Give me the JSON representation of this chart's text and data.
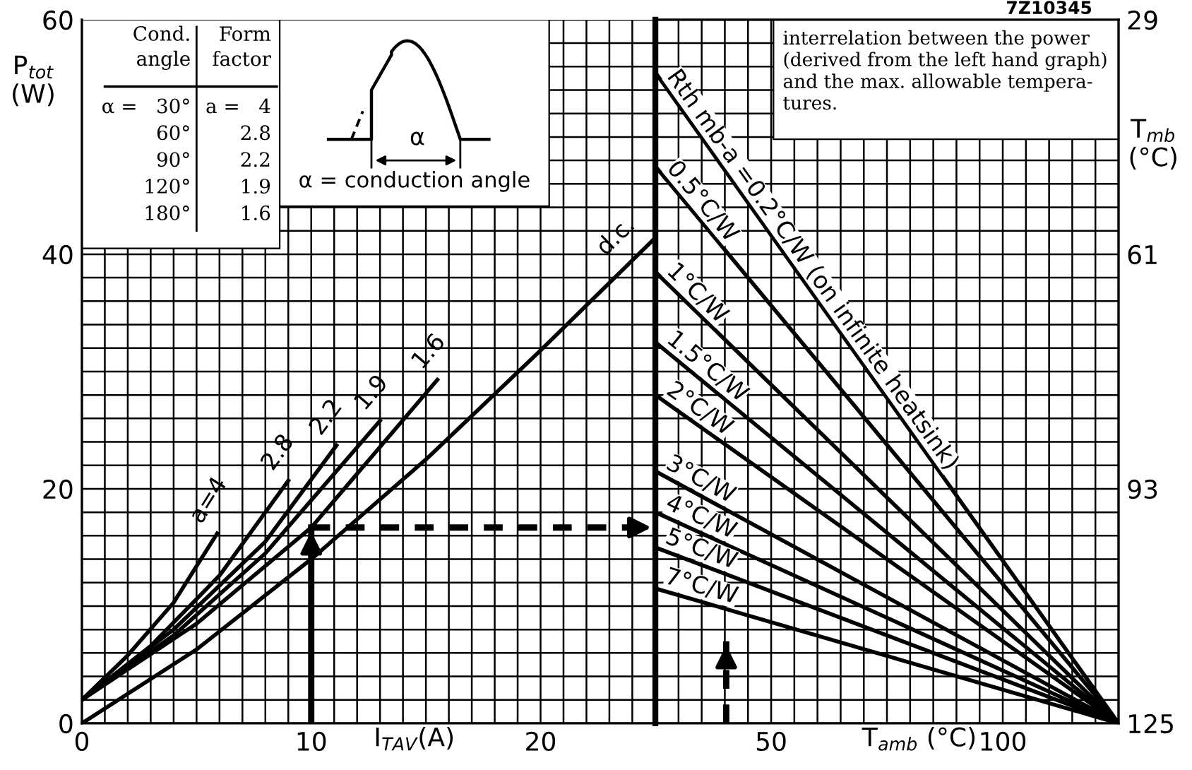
{
  "chart_data": [
    {
      "type": "line",
      "ylabel": "P$_{tot}$\n(W)",
      "xlabel": "I$_{TAV}$(A)",
      "xlim": [
        0,
        25
      ],
      "ylim": [
        0,
        60
      ],
      "grid": true,
      "line_style": "solid",
      "xticks": [
        0,
        {
          "value": 1,
          "label": null
        },
        {
          "value": 2,
          "label": null
        },
        {
          "value": 3,
          "label": null
        },
        {
          "value": 4,
          "label": null
        },
        {
          "value": 5,
          "label": null
        },
        {
          "value": 6,
          "label": null
        },
        {
          "value": 7,
          "label": null
        },
        {
          "value": 8,
          "label": null
        },
        {
          "value": 9,
          "label": null
        },
        10,
        {
          "value": 11,
          "label": null
        },
        {
          "value": 12,
          "label": null
        },
        {
          "value": 13,
          "label": null
        },
        {
          "value": 14,
          "label": null
        },
        {
          "value": 15,
          "label": null
        },
        {
          "value": 16,
          "label": null
        },
        {
          "value": 17,
          "label": null
        },
        {
          "value": 18,
          "label": null
        },
        {
          "value": 19,
          "label": null
        },
        20,
        {
          "value": 21,
          "label": null
        },
        {
          "value": 22,
          "label": null
        },
        {
          "value": 23,
          "label": null
        },
        {
          "value": 24,
          "label": null
        },
        {
          "value": 25,
          "label": null
        }
      ],
      "yticks": [
        0,
        {
          "value": 2,
          "label": null
        },
        {
          "value": 4,
          "label": null
        },
        {
          "value": 6,
          "label": null
        },
        {
          "value": 8,
          "label": null
        },
        {
          "value": 10,
          "label": null
        },
        {
          "value": 12,
          "label": null
        },
        {
          "value": 14,
          "label": null
        },
        {
          "value": 16,
          "label": null
        },
        {
          "value": 18,
          "label": null
        },
        20,
        {
          "value": 22,
          "label": null
        },
        {
          "value": 24,
          "label": null
        },
        {
          "value": 26,
          "label": null
        },
        {
          "value": 28,
          "label": null
        },
        {
          "value": 30,
          "label": null
        },
        {
          "value": 32,
          "label": null
        },
        {
          "value": 34,
          "label": null
        },
        {
          "value": 36,
          "label": null
        },
        {
          "value": 38,
          "label": null
        },
        40,
        {
          "value": 42,
          "label": null
        },
        {
          "value": 44,
          "label": null
        },
        {
          "value": 46,
          "label": null
        },
        {
          "value": 48,
          "label": null
        },
        {
          "value": 50,
          "label": null
        },
        {
          "value": 52,
          "label": null
        },
        {
          "value": 54,
          "label": null
        },
        {
          "value": 56,
          "label": null
        },
        {
          "value": 58,
          "label": null
        },
        60
      ],
      "series": [
        {
          "name": "a=4",
          "color": "#000000",
          "x": [
            0,
            2,
            4,
            5.9
          ],
          "values": [
            2,
            5.8,
            10.3,
            16.2
          ]
        },
        {
          "name": "2.8",
          "color": "#000000",
          "x": [
            0,
            3,
            6,
            9
          ],
          "values": [
            2,
            6.6,
            12.6,
            20.7
          ]
        },
        {
          "name": "2.2",
          "color": "#000000",
          "x": [
            0,
            4,
            8,
            11.1
          ],
          "values": [
            2,
            8,
            15.5,
            23.7
          ]
        },
        {
          "name": "1.9",
          "color": "#000000",
          "x": [
            0,
            4,
            8,
            13
          ],
          "values": [
            2,
            7.5,
            14.5,
            25.8
          ]
        },
        {
          "name": "1.6",
          "color": "#000000",
          "x": [
            0,
            5,
            10,
            15.5
          ],
          "values": [
            2,
            8.5,
            16.7,
            29.3
          ]
        },
        {
          "name": "d.c.",
          "color": "#000000",
          "x": [
            0,
            5,
            10,
            15,
            20,
            25
          ],
          "values": [
            0,
            6.3,
            14,
            22.5,
            31.8,
            41.4
          ]
        },
        {
          "color": "#000000",
          "x": [
            10,
            10
          ],
          "values": [
            0,
            16.7
          ],
          "line_style": "solid"
        },
        {
          "color": "#000000",
          "x": [
            10,
            25
          ],
          "values": [
            16.7,
            16.7
          ],
          "line_style": "dashed"
        }
      ],
      "annotations": [
        "Cond.\nangle",
        "Form\nfactor",
        "α =   30°",
        "a =   4",
        "60°",
        "2.8",
        "90°",
        "2.2",
        "120°",
        "1.9",
        "180°",
        "1.6",
        "α",
        "α = conduction angle"
      ]
    },
    {
      "type": "line",
      "xlabel": "T$_{amb}$ (°C)",
      "y2label": "T$_{mb}$\n(°C)",
      "xlim": [
        25,
        125
      ],
      "y2lim": [
        125,
        29
      ],
      "grid": true,
      "line_style": "solid",
      "xticks": [
        {
          "value": 25,
          "label": null
        },
        {
          "value": 30,
          "label": null
        },
        {
          "value": 35,
          "label": null
        },
        {
          "value": 40,
          "label": null
        },
        {
          "value": 45,
          "label": null
        },
        50,
        {
          "value": 55,
          "label": null
        },
        {
          "value": 60,
          "label": null
        },
        {
          "value": 65,
          "label": null
        },
        {
          "value": 70,
          "label": null
        },
        {
          "value": 75,
          "label": null
        },
        {
          "value": 80,
          "label": null
        },
        {
          "value": 85,
          "label": null
        },
        {
          "value": 90,
          "label": null
        },
        {
          "value": 95,
          "label": null
        },
        100,
        {
          "value": 105,
          "label": null
        },
        {
          "value": 110,
          "label": null
        },
        {
          "value": 115,
          "label": null
        },
        {
          "value": 120,
          "label": null
        },
        {
          "value": 125,
          "label": null
        }
      ],
      "y2ticks": [
        29,
        {
          "value": 32.2,
          "label": null
        },
        {
          "value": 35.4,
          "label": null
        },
        {
          "value": 38.6,
          "label": null
        },
        {
          "value": 41.8,
          "label": null
        },
        {
          "value": 45,
          "label": null
        },
        {
          "value": 48.2,
          "label": null
        },
        {
          "value": 51.4,
          "label": null
        },
        {
          "value": 54.6,
          "label": null
        },
        {
          "value": 57.8,
          "label": null
        },
        61,
        {
          "value": 64.2,
          "label": null
        },
        {
          "value": 67.4,
          "label": null
        },
        {
          "value": 70.6,
          "label": null
        },
        {
          "value": 73.8,
          "label": null
        },
        {
          "value": 77,
          "label": null
        },
        {
          "value": 80.2,
          "label": null
        },
        {
          "value": 83.4,
          "label": null
        },
        {
          "value": 86.6,
          "label": null
        },
        {
          "value": 89.8,
          "label": null
        },
        93,
        {
          "value": 96.2,
          "label": null
        },
        {
          "value": 99.4,
          "label": null
        },
        {
          "value": 102.6,
          "label": null
        },
        {
          "value": 105.8,
          "label": null
        },
        {
          "value": 109,
          "label": null
        },
        {
          "value": 112.2,
          "label": null
        },
        {
          "value": 115.4,
          "label": null
        },
        {
          "value": 118.6,
          "label": null
        },
        {
          "value": 121.8,
          "label": null
        },
        125
      ],
      "series": [
        {
          "name": "Rth mb-a =0.2°C/W (on infinite heatsink)",
          "color": "#000000",
          "axis": "y2",
          "x": [
            25,
            125
          ],
          "values": [
            36.2,
            125
          ]
        },
        {
          "name": "0.5°C/W",
          "color": "#000000",
          "axis": "y2",
          "x": [
            25,
            125
          ],
          "values": [
            49,
            125
          ]
        },
        {
          "name": "1°C/W",
          "color": "#000000",
          "axis": "y2",
          "x": [
            25,
            125
          ],
          "values": [
            63.4,
            125
          ]
        },
        {
          "name": "1.5°C/W",
          "color": "#000000",
          "axis": "y2",
          "x": [
            25,
            125
          ],
          "values": [
            73,
            125
          ]
        },
        {
          "name": "2°C/W",
          "color": "#000000",
          "axis": "y2",
          "x": [
            25,
            125
          ],
          "values": [
            80.2,
            125
          ]
        },
        {
          "name": "3°C/W",
          "color": "#000000",
          "axis": "y2",
          "x": [
            25,
            125
          ],
          "values": [
            90.6,
            125
          ]
        },
        {
          "name": "4°C/W",
          "color": "#000000",
          "axis": "y2",
          "x": [
            25,
            125
          ],
          "values": [
            96.2,
            125
          ]
        },
        {
          "name": "5°C/W",
          "color": "#000000",
          "axis": "y2",
          "x": [
            25,
            125
          ],
          "values": [
            101,
            125
          ]
        },
        {
          "name": "7°C/W",
          "color": "#000000",
          "axis": "y2",
          "x": [
            25,
            125
          ],
          "values": [
            106.6,
            125
          ]
        },
        {
          "color": "#000000",
          "axis": "y2",
          "x": [
            40.3,
            40.3
          ],
          "values": [
            125,
            113.8
          ],
          "line_style": "dashed"
        }
      ],
      "annotations": [
        "interrelation between the power\n(derived from the left hand graph)\nand the max. allowable tempera-\ntures.",
        "7Z10345"
      ]
    }
  ]
}
